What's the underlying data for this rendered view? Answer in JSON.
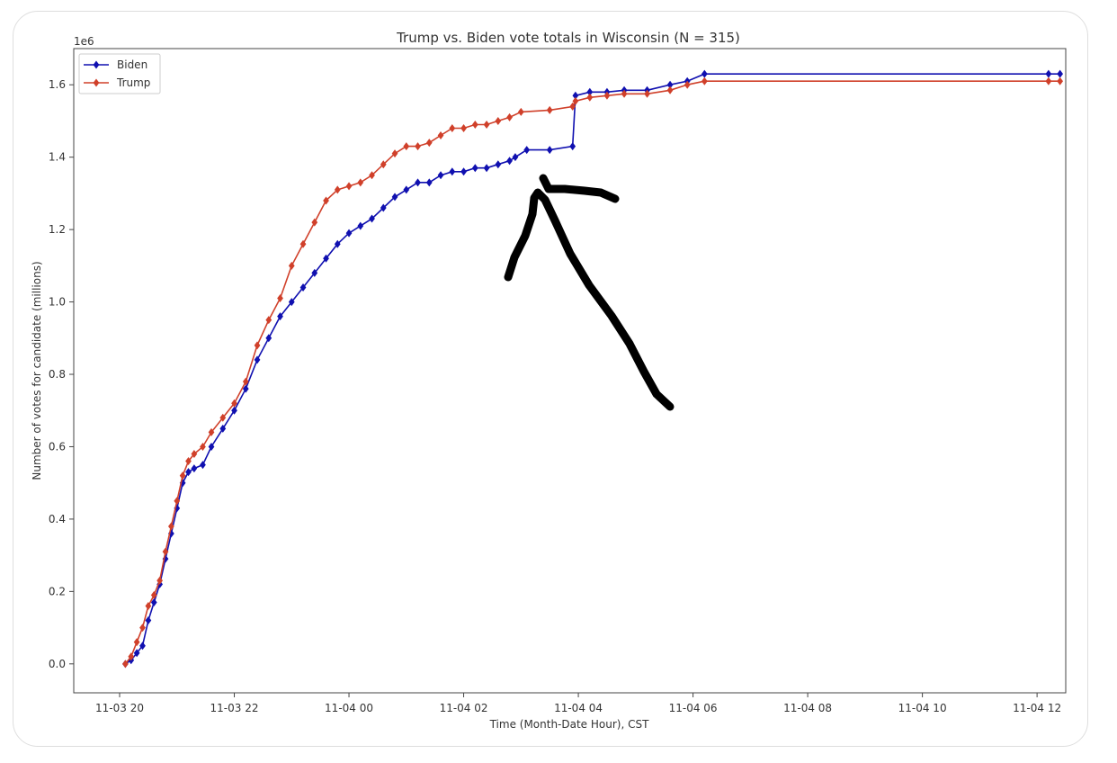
{
  "chart_data": {
    "type": "line",
    "title": "Trump vs. Biden vote totals in Wisconsin (N = 315)",
    "xlabel": "Time (Month-Date Hour), CST",
    "ylabel": "Number of votes for candidate (millions)",
    "y_offset_label": "1e6",
    "x_unit": "hours since 11-03 20:00 CST",
    "xlim": [
      -0.8,
      16.5
    ],
    "ylim": [
      -0.08,
      1.7
    ],
    "x_ticks": [
      0,
      2,
      4,
      6,
      8,
      10,
      12,
      14,
      16
    ],
    "x_tick_labels": [
      "11-03 20",
      "11-03 22",
      "11-04 00",
      "11-04 02",
      "11-04 04",
      "11-04 06",
      "11-04 08",
      "11-04 10",
      "11-04 12"
    ],
    "y_ticks": [
      0.0,
      0.2,
      0.4,
      0.6,
      0.8,
      1.0,
      1.2,
      1.4,
      1.6
    ],
    "y_tick_labels": [
      "0.0",
      "0.2",
      "0.4",
      "0.6",
      "0.8",
      "1.0",
      "1.2",
      "1.4",
      "1.6"
    ],
    "legend_position": "top-left",
    "grid": false,
    "series": [
      {
        "name": "Biden",
        "color": "#1010b0",
        "marker": "diamond",
        "points": [
          [
            0.1,
            0.0
          ],
          [
            0.2,
            0.01
          ],
          [
            0.3,
            0.03
          ],
          [
            0.4,
            0.05
          ],
          [
            0.5,
            0.12
          ],
          [
            0.6,
            0.17
          ],
          [
            0.7,
            0.22
          ],
          [
            0.8,
            0.29
          ],
          [
            0.9,
            0.36
          ],
          [
            1.0,
            0.43
          ],
          [
            1.1,
            0.5
          ],
          [
            1.2,
            0.53
          ],
          [
            1.3,
            0.54
          ],
          [
            1.45,
            0.55
          ],
          [
            1.6,
            0.6
          ],
          [
            1.8,
            0.65
          ],
          [
            2.0,
            0.7
          ],
          [
            2.2,
            0.76
          ],
          [
            2.4,
            0.84
          ],
          [
            2.6,
            0.9
          ],
          [
            2.8,
            0.96
          ],
          [
            3.0,
            1.0
          ],
          [
            3.2,
            1.04
          ],
          [
            3.4,
            1.08
          ],
          [
            3.6,
            1.12
          ],
          [
            3.8,
            1.16
          ],
          [
            4.0,
            1.19
          ],
          [
            4.2,
            1.21
          ],
          [
            4.4,
            1.23
          ],
          [
            4.6,
            1.26
          ],
          [
            4.8,
            1.29
          ],
          [
            5.0,
            1.31
          ],
          [
            5.2,
            1.33
          ],
          [
            5.4,
            1.33
          ],
          [
            5.6,
            1.35
          ],
          [
            5.8,
            1.36
          ],
          [
            6.0,
            1.36
          ],
          [
            6.2,
            1.37
          ],
          [
            6.4,
            1.37
          ],
          [
            6.6,
            1.38
          ],
          [
            6.8,
            1.39
          ],
          [
            6.9,
            1.4
          ],
          [
            7.1,
            1.42
          ],
          [
            7.5,
            1.42
          ],
          [
            7.9,
            1.43
          ],
          [
            7.95,
            1.57
          ],
          [
            8.2,
            1.58
          ],
          [
            8.5,
            1.58
          ],
          [
            8.8,
            1.585
          ],
          [
            9.2,
            1.585
          ],
          [
            9.6,
            1.6
          ],
          [
            9.9,
            1.61
          ],
          [
            10.2,
            1.63
          ],
          [
            16.2,
            1.63
          ],
          [
            16.4,
            1.63
          ]
        ]
      },
      {
        "name": "Trump",
        "color": "#d0402a",
        "marker": "diamond",
        "points": [
          [
            0.1,
            0.0
          ],
          [
            0.2,
            0.02
          ],
          [
            0.3,
            0.06
          ],
          [
            0.4,
            0.1
          ],
          [
            0.5,
            0.16
          ],
          [
            0.6,
            0.19
          ],
          [
            0.7,
            0.23
          ],
          [
            0.8,
            0.31
          ],
          [
            0.9,
            0.38
          ],
          [
            1.0,
            0.45
          ],
          [
            1.1,
            0.52
          ],
          [
            1.2,
            0.56
          ],
          [
            1.3,
            0.58
          ],
          [
            1.45,
            0.6
          ],
          [
            1.6,
            0.64
          ],
          [
            1.8,
            0.68
          ],
          [
            2.0,
            0.72
          ],
          [
            2.2,
            0.78
          ],
          [
            2.4,
            0.88
          ],
          [
            2.6,
            0.95
          ],
          [
            2.8,
            1.01
          ],
          [
            3.0,
            1.1
          ],
          [
            3.2,
            1.16
          ],
          [
            3.4,
            1.22
          ],
          [
            3.6,
            1.28
          ],
          [
            3.8,
            1.31
          ],
          [
            4.0,
            1.32
          ],
          [
            4.2,
            1.33
          ],
          [
            4.4,
            1.35
          ],
          [
            4.6,
            1.38
          ],
          [
            4.8,
            1.41
          ],
          [
            5.0,
            1.43
          ],
          [
            5.2,
            1.43
          ],
          [
            5.4,
            1.44
          ],
          [
            5.6,
            1.46
          ],
          [
            5.8,
            1.48
          ],
          [
            6.0,
            1.48
          ],
          [
            6.2,
            1.49
          ],
          [
            6.4,
            1.49
          ],
          [
            6.6,
            1.5
          ],
          [
            6.8,
            1.51
          ],
          [
            7.0,
            1.525
          ],
          [
            7.5,
            1.53
          ],
          [
            7.9,
            1.54
          ],
          [
            7.95,
            1.555
          ],
          [
            8.2,
            1.565
          ],
          [
            8.5,
            1.57
          ],
          [
            8.8,
            1.575
          ],
          [
            9.2,
            1.575
          ],
          [
            9.6,
            1.585
          ],
          [
            9.9,
            1.6
          ],
          [
            10.2,
            1.61
          ],
          [
            16.2,
            1.61
          ],
          [
            16.4,
            1.61
          ]
        ]
      }
    ]
  }
}
